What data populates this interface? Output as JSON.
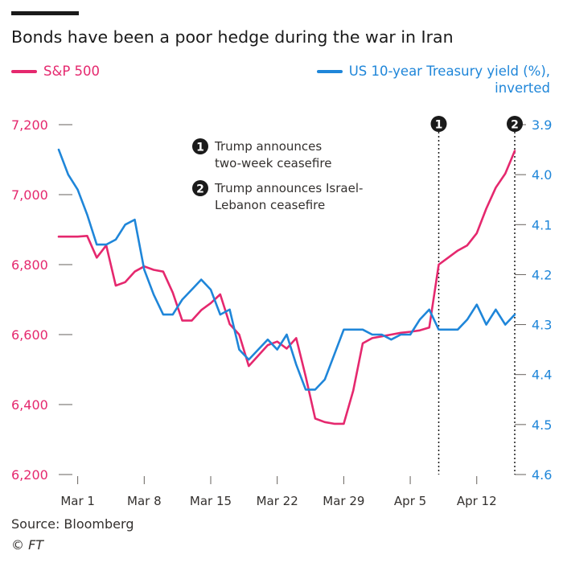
{
  "title": "Bonds have been a poor hedge during the war in Iran",
  "legend": {
    "left_label": "S&P 500",
    "right_label_line1": "US 10-year Treasury yield (%),",
    "right_label_line2": "inverted"
  },
  "colors": {
    "sp500": "#e5286e",
    "yield": "#1f86d9",
    "text": "#33302e",
    "axis": "#66605c"
  },
  "annotations": [
    {
      "number": "1",
      "line1": "Trump announces",
      "line2": "two-week ceasefire",
      "date": "Apr 8"
    },
    {
      "number": "2",
      "line1": "Trump announces Israel-",
      "line2": "Lebanon ceasefire",
      "date": "Apr 16"
    }
  ],
  "source": "Source: Bloomberg",
  "credit": "© FT",
  "chart_data": {
    "type": "line",
    "title": "Bonds have been a poor hedge during the war in Iran",
    "x_tick_labels": [
      "Mar 1",
      "Mar 8",
      "Mar 15",
      "Mar 22",
      "Mar 29",
      "Apr 5",
      "Apr 12"
    ],
    "left_axis": {
      "ticks": [
        6200,
        6400,
        6600,
        6800,
        7000,
        7200
      ],
      "tick_labels": [
        "6,200",
        "6,400",
        "6,600",
        "6,800",
        "7,000",
        "7,200"
      ],
      "range": [
        6200,
        7200
      ]
    },
    "right_axis": {
      "inverted": true,
      "ticks": [
        3.9,
        4.0,
        4.1,
        4.2,
        4.3,
        4.4,
        4.5,
        4.6
      ],
      "tick_labels": [
        "3.9",
        "4.0",
        "4.1",
        "4.2",
        "4.3",
        "4.4",
        "4.5",
        "4.6"
      ],
      "range": [
        3.9,
        4.6
      ]
    },
    "series": [
      {
        "name": "S&P 500",
        "axis": "left",
        "points": [
          [
            "Feb 27",
            6880
          ],
          [
            "Feb 28",
            6880
          ],
          [
            "Mar 1",
            6880
          ],
          [
            "Mar 2",
            6882
          ],
          [
            "Mar 3",
            6820
          ],
          [
            "Mar 4",
            6855
          ],
          [
            "Mar 5",
            6740
          ],
          [
            "Mar 6",
            6750
          ],
          [
            "Mar 7",
            6780
          ],
          [
            "Mar 8",
            6795
          ],
          [
            "Mar 9",
            6785
          ],
          [
            "Mar 10",
            6780
          ],
          [
            "Mar 11",
            6720
          ],
          [
            "Mar 12",
            6640
          ],
          [
            "Mar 13",
            6640
          ],
          [
            "Mar 14",
            6670
          ],
          [
            "Mar 15",
            6690
          ],
          [
            "Mar 16",
            6715
          ],
          [
            "Mar 17",
            6630
          ],
          [
            "Mar 18",
            6600
          ],
          [
            "Mar 19",
            6510
          ],
          [
            "Mar 20",
            6540
          ],
          [
            "Mar 21",
            6570
          ],
          [
            "Mar 22",
            6580
          ],
          [
            "Mar 23",
            6560
          ],
          [
            "Mar 24",
            6590
          ],
          [
            "Mar 25",
            6480
          ],
          [
            "Mar 26",
            6360
          ],
          [
            "Mar 27",
            6350
          ],
          [
            "Mar 28",
            6345
          ],
          [
            "Mar 29",
            6345
          ],
          [
            "Mar 30",
            6440
          ],
          [
            "Mar 31",
            6575
          ],
          [
            "Apr 1",
            6590
          ],
          [
            "Apr 2",
            6595
          ],
          [
            "Apr 3",
            6600
          ],
          [
            "Apr 4",
            6605
          ],
          [
            "Apr 5",
            6608
          ],
          [
            "Apr 6",
            6612
          ],
          [
            "Apr 7",
            6620
          ],
          [
            "Apr 8",
            6800
          ],
          [
            "Apr 9",
            6820
          ],
          [
            "Apr 10",
            6840
          ],
          [
            "Apr 11",
            6855
          ],
          [
            "Apr 12",
            6890
          ],
          [
            "Apr 13",
            6960
          ],
          [
            "Apr 14",
            7020
          ],
          [
            "Apr 15",
            7060
          ],
          [
            "Apr 16",
            7125
          ]
        ]
      },
      {
        "name": "US 10-year Treasury yield (%), inverted",
        "axis": "right",
        "points": [
          [
            "Feb 27",
            3.95
          ],
          [
            "Feb 28",
            4.0
          ],
          [
            "Mar 1",
            4.03
          ],
          [
            "Mar 2",
            4.08
          ],
          [
            "Mar 3",
            4.14
          ],
          [
            "Mar 4",
            4.14
          ],
          [
            "Mar 5",
            4.13
          ],
          [
            "Mar 6",
            4.1
          ],
          [
            "Mar 7",
            4.09
          ],
          [
            "Mar 8",
            4.19
          ],
          [
            "Mar 9",
            4.24
          ],
          [
            "Mar 10",
            4.28
          ],
          [
            "Mar 11",
            4.28
          ],
          [
            "Mar 12",
            4.25
          ],
          [
            "Mar 13",
            4.23
          ],
          [
            "Mar 14",
            4.21
          ],
          [
            "Mar 15",
            4.23
          ],
          [
            "Mar 16",
            4.28
          ],
          [
            "Mar 17",
            4.27
          ],
          [
            "Mar 18",
            4.35
          ],
          [
            "Mar 19",
            4.37
          ],
          [
            "Mar 20",
            4.35
          ],
          [
            "Mar 21",
            4.33
          ],
          [
            "Mar 22",
            4.35
          ],
          [
            "Mar 23",
            4.32
          ],
          [
            "Mar 24",
            4.38
          ],
          [
            "Mar 25",
            4.43
          ],
          [
            "Mar 26",
            4.43
          ],
          [
            "Mar 27",
            4.41
          ],
          [
            "Mar 28",
            4.36
          ],
          [
            "Mar 29",
            4.31
          ],
          [
            "Mar 30",
            4.31
          ],
          [
            "Mar 31",
            4.31
          ],
          [
            "Apr 1",
            4.32
          ],
          [
            "Apr 2",
            4.32
          ],
          [
            "Apr 3",
            4.33
          ],
          [
            "Apr 4",
            4.32
          ],
          [
            "Apr 5",
            4.32
          ],
          [
            "Apr 6",
            4.29
          ],
          [
            "Apr 7",
            4.27
          ],
          [
            "Apr 8",
            4.31
          ],
          [
            "Apr 9",
            4.31
          ],
          [
            "Apr 10",
            4.31
          ],
          [
            "Apr 11",
            4.29
          ],
          [
            "Apr 12",
            4.26
          ],
          [
            "Apr 13",
            4.3
          ],
          [
            "Apr 14",
            4.27
          ],
          [
            "Apr 15",
            4.3
          ],
          [
            "Apr 16",
            4.28
          ]
        ]
      }
    ]
  }
}
